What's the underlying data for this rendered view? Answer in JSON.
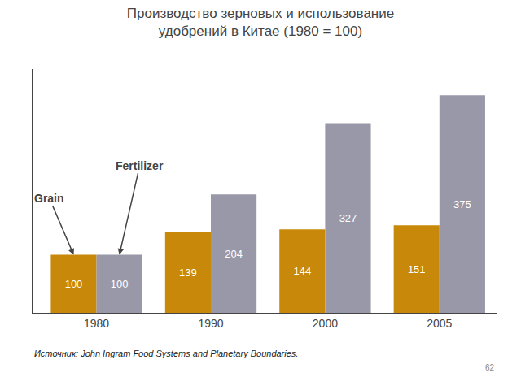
{
  "chart_data": {
    "type": "bar",
    "title": "Производство зерновых и использование\nудобрений в Китае (1980 = 100)",
    "categories": [
      "1980",
      "1990",
      "2000",
      "2005"
    ],
    "series": [
      {
        "name": "Grain",
        "color": "#c8880a",
        "values": [
          100,
          139,
          144,
          151
        ]
      },
      {
        "name": "Fertilizer",
        "color": "#9898a8",
        "values": [
          100,
          204,
          327,
          375
        ]
      }
    ],
    "ylim": [
      0,
      420
    ],
    "grid": false,
    "data_labels": true,
    "tick_labels": "x",
    "annotations": [
      "Источник: John Ingram Food Systems and Planetary Boundaries.",
      "62"
    ]
  }
}
